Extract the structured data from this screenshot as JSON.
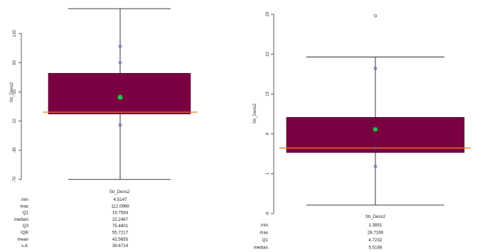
{
  "colors": {
    "box_fill": "#7a0042",
    "median_line": "#f07a1a",
    "mean_marker": "#22c04a",
    "point_stroke": "#4a4ab0",
    "axis": "#333333",
    "whisker": "#222222"
  },
  "chart_data": [
    {
      "type": "box",
      "ylabel": "Str_Dens2",
      "xlabel": "Str_Dens2",
      "ylim": [
        -75,
        170
      ],
      "yticks": [
        130,
        90,
        50,
        10,
        -30,
        -70
      ],
      "box": {
        "q1": 19.7584,
        "q3": 75.4801,
        "median": 22.2467,
        "mean": 42.5655,
        "whisker_low": -70,
        "whisker_high": 164
      },
      "points": [
        112.0969,
        90,
        4.5147
      ],
      "stats": [
        {
          "label": "min",
          "value": "4.5147"
        },
        {
          "label": "max",
          "value": "112.0969"
        },
        {
          "label": "Q1",
          "value": "19.7584"
        },
        {
          "label": "median",
          "value": "22.2467"
        },
        {
          "label": "Q3",
          "value": "75.4801"
        },
        {
          "label": "IQR",
          "value": "55.7217"
        },
        {
          "label": "mean",
          "value": "42.5655"
        },
        {
          "label": "s.d.",
          "value": "39.6714"
        }
      ]
    },
    {
      "type": "box",
      "ylabel": "Str_Dens2",
      "xlabel": "Str_Dens2",
      "ylim": [
        -5,
        30
      ],
      "yticks": [
        29,
        22,
        15,
        8,
        1,
        -6
      ],
      "box": {
        "q1": 4.7232,
        "q3": 10.9,
        "median": 5.5168,
        "mean": 8.8,
        "whisker_low": -4.5,
        "whisker_high": 21.5
      },
      "points": [
        28.7166,
        19.5,
        5.5,
        2.3
      ],
      "stats": [
        {
          "label": "min",
          "value": "1.3851"
        },
        {
          "label": "max",
          "value": "28.7166"
        },
        {
          "label": "Q1",
          "value": "4.7232"
        },
        {
          "label": "median",
          "value": "5.5168"
        }
      ]
    }
  ]
}
